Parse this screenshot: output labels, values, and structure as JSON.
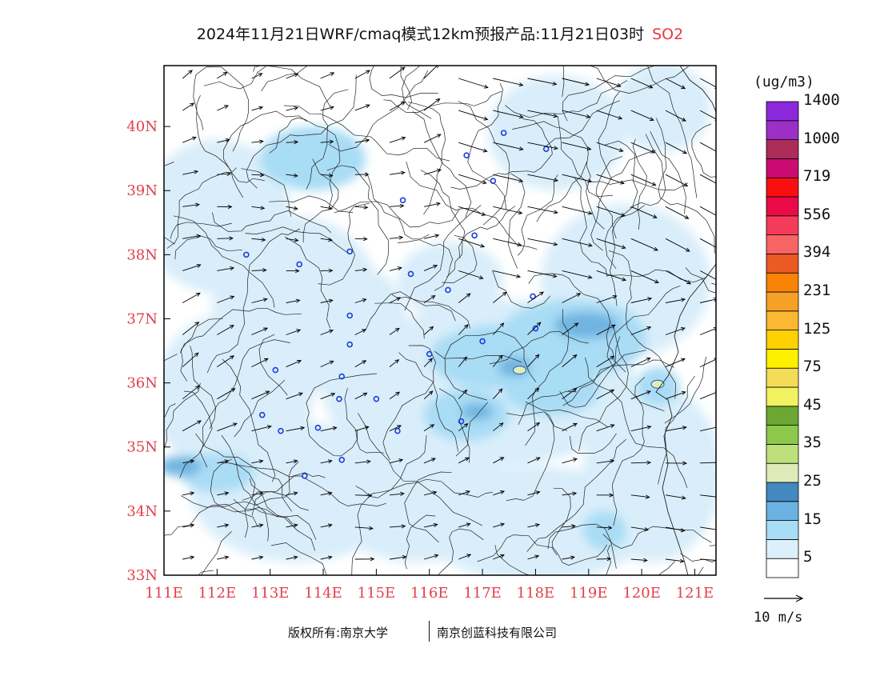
{
  "title": {
    "main": "2024年11月21日WRF/cmaq模式12km预报产品:11月21日03时",
    "pollutant": "SO2"
  },
  "map": {
    "lon_labels": [
      "111E",
      "112E",
      "113E",
      "114E",
      "115E",
      "116E",
      "117E",
      "118E",
      "119E",
      "120E",
      "121E"
    ],
    "lat_labels": [
      "40N",
      "39N",
      "38N",
      "37N",
      "36N",
      "35N",
      "34N",
      "33N"
    ],
    "lon_range": [
      111,
      121.4
    ],
    "lat_range": [
      33,
      40.95
    ],
    "border_color": "#000000",
    "cities": [
      {
        "lon": 117.4,
        "lat": 39.9
      },
      {
        "lon": 116.7,
        "lat": 39.55
      },
      {
        "lon": 118.2,
        "lat": 39.65
      },
      {
        "lon": 117.2,
        "lat": 39.15
      },
      {
        "lon": 115.5,
        "lat": 38.85
      },
      {
        "lon": 116.85,
        "lat": 38.3
      },
      {
        "lon": 112.55,
        "lat": 38.0
      },
      {
        "lon": 113.55,
        "lat": 37.85
      },
      {
        "lon": 114.5,
        "lat": 38.05
      },
      {
        "lon": 115.65,
        "lat": 37.7
      },
      {
        "lon": 116.35,
        "lat": 37.45
      },
      {
        "lon": 117.95,
        "lat": 37.35
      },
      {
        "lon": 114.5,
        "lat": 37.05
      },
      {
        "lon": 117.0,
        "lat": 36.65
      },
      {
        "lon": 118.0,
        "lat": 36.85
      },
      {
        "lon": 114.5,
        "lat": 36.6
      },
      {
        "lon": 116.0,
        "lat": 36.45
      },
      {
        "lon": 113.1,
        "lat": 36.2
      },
      {
        "lon": 114.35,
        "lat": 36.1
      },
      {
        "lon": 114.3,
        "lat": 35.75
      },
      {
        "lon": 115.0,
        "lat": 35.75
      },
      {
        "lon": 112.85,
        "lat": 35.5
      },
      {
        "lon": 113.9,
        "lat": 35.3
      },
      {
        "lon": 113.2,
        "lat": 35.25
      },
      {
        "lon": 115.4,
        "lat": 35.25
      },
      {
        "lon": 116.6,
        "lat": 35.4
      },
      {
        "lon": 114.35,
        "lat": 34.8
      },
      {
        "lon": 113.65,
        "lat": 34.55
      }
    ],
    "hotspots": [
      {
        "lon": 117.7,
        "lat": 36.2,
        "level": 25
      },
      {
        "lon": 120.3,
        "lat": 35.98,
        "level": 25
      }
    ]
  },
  "concentration_fields": [
    {
      "level": 5,
      "color": "#d9eefa",
      "blobs": [
        {
          "lon": 112.0,
          "lat": 38.6,
          "rx": 1.4,
          "ry": 1.2
        },
        {
          "lon": 113.5,
          "lat": 37.2,
          "rx": 1.6,
          "ry": 1.4
        },
        {
          "lon": 112.3,
          "lat": 35.8,
          "rx": 1.5,
          "ry": 1.3
        },
        {
          "lon": 113.5,
          "lat": 34.3,
          "rx": 2.0,
          "ry": 1.1
        },
        {
          "lon": 115.8,
          "lat": 34.2,
          "rx": 1.8,
          "ry": 1.0
        },
        {
          "lon": 118.0,
          "lat": 33.8,
          "rx": 2.2,
          "ry": 0.9
        },
        {
          "lon": 120.2,
          "lat": 34.6,
          "rx": 1.3,
          "ry": 1.4
        },
        {
          "lon": 119.7,
          "lat": 37.6,
          "rx": 1.6,
          "ry": 1.2
        },
        {
          "lon": 118.4,
          "lat": 39.9,
          "rx": 1.3,
          "ry": 0.9
        },
        {
          "lon": 120.4,
          "lat": 40.3,
          "rx": 0.9,
          "ry": 0.7
        },
        {
          "lon": 117.3,
          "lat": 36.0,
          "rx": 2.6,
          "ry": 1.3
        },
        {
          "lon": 114.8,
          "lat": 36.4,
          "rx": 0.9,
          "ry": 1.4
        },
        {
          "lon": 116.4,
          "lat": 37.6,
          "rx": 1.0,
          "ry": 0.6
        }
      ]
    },
    {
      "level": 15,
      "color": "#a9dcf5",
      "blobs": [
        {
          "lon": 113.8,
          "lat": 39.5,
          "rx": 1.0,
          "ry": 0.5
        },
        {
          "lon": 117.3,
          "lat": 36.4,
          "rx": 1.3,
          "ry": 0.5
        },
        {
          "lon": 118.7,
          "lat": 36.7,
          "rx": 1.4,
          "ry": 0.6
        },
        {
          "lon": 116.7,
          "lat": 35.5,
          "rx": 0.8,
          "ry": 0.4
        },
        {
          "lon": 118.3,
          "lat": 35.9,
          "rx": 0.9,
          "ry": 0.4
        },
        {
          "lon": 112.0,
          "lat": 34.6,
          "rx": 0.7,
          "ry": 0.3
        },
        {
          "lon": 119.3,
          "lat": 33.7,
          "rx": 0.4,
          "ry": 0.3
        },
        {
          "lon": 120.3,
          "lat": 35.95,
          "rx": 0.4,
          "ry": 0.3
        }
      ]
    },
    {
      "level": 25,
      "color": "#70b4e0",
      "blobs": [
        {
          "lon": 118.95,
          "lat": 36.9,
          "rx": 0.6,
          "ry": 0.2
        },
        {
          "lon": 117.6,
          "lat": 36.25,
          "rx": 0.3,
          "ry": 0.15
        },
        {
          "lon": 111.3,
          "lat": 34.7,
          "rx": 0.4,
          "ry": 0.15
        },
        {
          "lon": 116.9,
          "lat": 35.55,
          "rx": 0.3,
          "ry": 0.12
        }
      ]
    }
  ],
  "wind": {
    "reference_label": "10 m/s",
    "reference_speed": 10
  },
  "colorbar": {
    "unit": "(ug/m3)",
    "labels": [
      "5",
      "15",
      "25",
      "35",
      "45",
      "75",
      "125",
      "231",
      "394",
      "556",
      "719",
      "1000",
      "1400"
    ],
    "colors": [
      "#ffffff",
      "#dcf0fc",
      "#a9dcf5",
      "#6bb2e0",
      "#4388c0",
      "#dfeab8",
      "#bde07a",
      "#8cc84a",
      "#6aa832",
      "#f1f260",
      "#f4dc58",
      "#fff000",
      "#ffd100",
      "#fbb832",
      "#f7a028",
      "#f88306",
      "#ec5a24",
      "#f86464",
      "#f43c5a",
      "#ea0a48",
      "#f81010",
      "#ca0c72",
      "#ac2c5a",
      "#9c30c6",
      "#8c28dc"
    ]
  },
  "footer": {
    "copyright": "版权所有:南京大学",
    "company": "南京创蓝科技有限公司"
  }
}
